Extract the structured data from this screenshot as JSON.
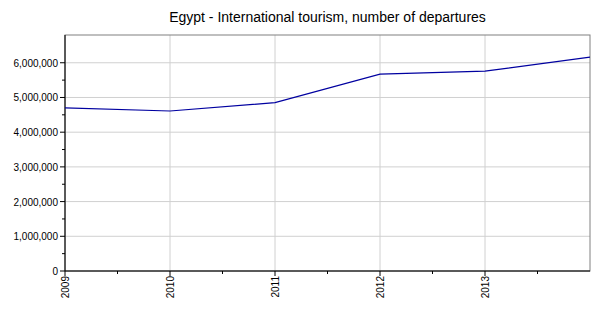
{
  "chart_data": {
    "type": "line",
    "title": "Egypt - International tourism, number of departures",
    "x": [
      2009,
      2010,
      2011,
      2012,
      2013,
      2014
    ],
    "values": [
      4700000,
      4610000,
      4850000,
      5670000,
      5760000,
      6160000
    ],
    "color": "#0000a0",
    "xlim": [
      2009,
      2014
    ],
    "xticks": [
      2009,
      2010,
      2011,
      2012,
      2013
    ],
    "ylim": [
      0,
      6800000
    ],
    "yticks": [
      0,
      {
        "value": 1000000,
        "label": "1,000,000"
      },
      {
        "value": 2000000,
        "label": "2,000,000"
      },
      {
        "value": 3000000,
        "label": "3,000,000"
      },
      {
        "value": 4000000,
        "label": "4,000,000"
      },
      {
        "value": 5000000,
        "label": "5,000,000"
      },
      {
        "value": 6000000,
        "label": "6,000,000"
      }
    ],
    "grid": true
  }
}
